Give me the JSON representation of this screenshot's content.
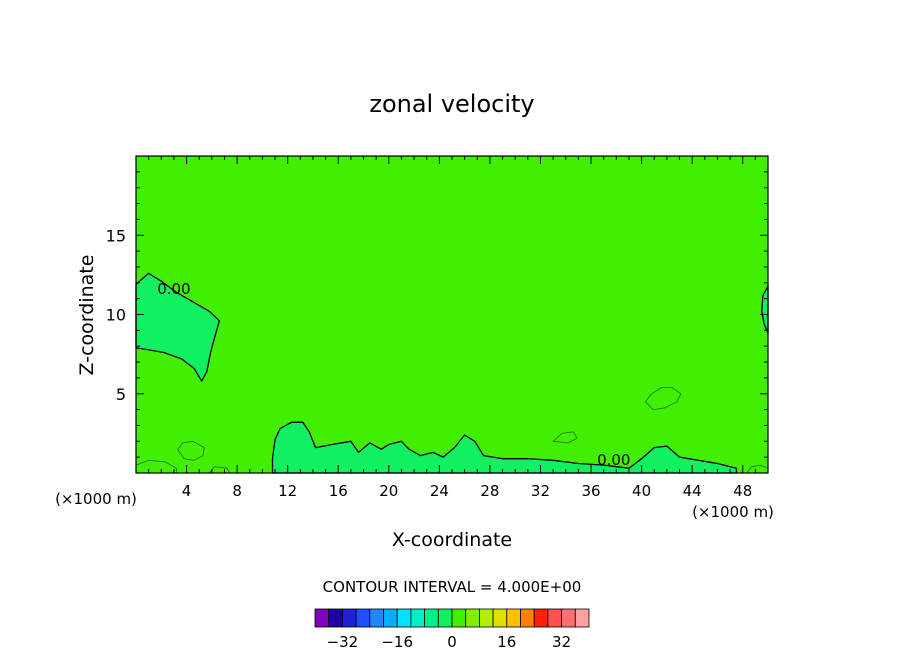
{
  "chart_data": {
    "type": "heatmap",
    "title": "zonal velocity",
    "xlabel": "X-coordinate",
    "ylabel": "Z-coordinate",
    "x_unit_left": "(×1000 m)",
    "x_unit_right": "(×1000 m)",
    "xlim": [
      0,
      50
    ],
    "ylim": [
      0,
      20
    ],
    "x_ticks": [
      4,
      8,
      12,
      16,
      20,
      24,
      28,
      32,
      36,
      40,
      44,
      48
    ],
    "y_ticks": [
      5,
      10,
      15
    ],
    "background_band_value": 2,
    "contour_label": "0.00",
    "contour_interval_text": "CONTOUR INTERVAL = 4.000E+00",
    "colorbar": {
      "levels": [
        -36,
        -32,
        -28,
        -24,
        -20,
        -16,
        -12,
        -8,
        -4,
        0,
        4,
        8,
        12,
        16,
        20,
        24,
        28,
        32,
        36
      ],
      "colors": [
        "#7f00bf",
        "#1f00a8",
        "#2020d8",
        "#1f4fff",
        "#1f88ff",
        "#00b0ff",
        "#00e0ff",
        "#00f0c8",
        "#00f08a",
        "#10f060",
        "#40f000",
        "#7ff000",
        "#b0f000",
        "#e0e000",
        "#ffc000",
        "#ff8000",
        "#ff2000",
        "#ff5050",
        "#ff7070",
        "#ffa0a0"
      ],
      "tick_labels": [
        "-32",
        "-16",
        "0",
        "16",
        "32"
      ],
      "tick_values": [
        -32,
        -16,
        0,
        16,
        32
      ]
    },
    "regions": [
      {
        "value": 0,
        "color": "#10f060",
        "desc": "weak westerly blob near x=3, z=10",
        "zero_contour": true,
        "points": [
          [
            0,
            11.9
          ],
          [
            1,
            12.6
          ],
          [
            2,
            12.1
          ],
          [
            3.2,
            11.4
          ],
          [
            4.5,
            10.8
          ],
          [
            5.8,
            10.2
          ],
          [
            6.6,
            9.6
          ],
          [
            6.2,
            8.5
          ],
          [
            5.9,
            7.6
          ],
          [
            5.6,
            6.4
          ],
          [
            5.2,
            5.8
          ],
          [
            4.6,
            6.6
          ],
          [
            3.6,
            7.2
          ],
          [
            2.2,
            7.6
          ],
          [
            0.8,
            7.8
          ],
          [
            0,
            7.9
          ]
        ]
      },
      {
        "value": 0,
        "color": "#10f060",
        "desc": "blob at right edge near z=10",
        "zero_contour": true,
        "points": [
          [
            50,
            11.8
          ],
          [
            49.6,
            11.2
          ],
          [
            49.5,
            10.2
          ],
          [
            49.7,
            9.4
          ],
          [
            50,
            8.8
          ]
        ]
      },
      {
        "value": 0,
        "color": "#10f060",
        "desc": "low-level near-zero band",
        "zero_contour": true,
        "points": [
          [
            10.8,
            0.9
          ],
          [
            11,
            2.1
          ],
          [
            11.4,
            2.8
          ],
          [
            12.3,
            3.2
          ],
          [
            13.2,
            3.2
          ],
          [
            13.7,
            2.6
          ],
          [
            14.2,
            1.6
          ],
          [
            15.5,
            1.8
          ],
          [
            17,
            2.0
          ],
          [
            17.6,
            1.3
          ],
          [
            18.5,
            1.9
          ],
          [
            19.4,
            1.5
          ],
          [
            20,
            1.8
          ],
          [
            21,
            2.0
          ],
          [
            21.6,
            1.5
          ],
          [
            22.5,
            1.1
          ],
          [
            23.5,
            1.3
          ],
          [
            24.3,
            1.0
          ],
          [
            25.2,
            1.6
          ],
          [
            26,
            2.4
          ],
          [
            26.8,
            2.0
          ],
          [
            27.5,
            1.1
          ],
          [
            29,
            0.9
          ],
          [
            31,
            0.9
          ],
          [
            33,
            0.8
          ],
          [
            35,
            0.6
          ],
          [
            37,
            0.5
          ],
          [
            39,
            0.3
          ],
          [
            40,
            0.9
          ],
          [
            41,
            1.6
          ],
          [
            42,
            1.7
          ],
          [
            43,
            1.0
          ],
          [
            44.5,
            0.8
          ],
          [
            46,
            0.6
          ],
          [
            47.5,
            0.3
          ],
          [
            47.5,
            0
          ],
          [
            10.8,
            0
          ]
        ]
      },
      {
        "value": 4,
        "color": "#40f000",
        "desc": "weak easterly blob near x=42, z=4.5",
        "zero_contour": false,
        "points": [
          [
            40.3,
            4.5
          ],
          [
            40.8,
            5.0
          ],
          [
            41.6,
            5.4
          ],
          [
            42.4,
            5.4
          ],
          [
            43.1,
            5.0
          ],
          [
            42.8,
            4.5
          ],
          [
            41.8,
            4.1
          ],
          [
            40.9,
            4.0
          ]
        ]
      },
      {
        "value": 4,
        "color": "#40f000",
        "desc": "small blob near x=4, z=1.5",
        "zero_contour": false,
        "points": [
          [
            3.3,
            1.5
          ],
          [
            3.7,
            1.9
          ],
          [
            4.5,
            2.0
          ],
          [
            5.4,
            1.6
          ],
          [
            5.3,
            1.1
          ],
          [
            4.6,
            0.8
          ],
          [
            3.8,
            0.9
          ]
        ]
      },
      {
        "value": 4,
        "color": "#40f000",
        "desc": "blob near x=34, z=2.2",
        "zero_contour": false,
        "points": [
          [
            33,
            2.0
          ],
          [
            33.7,
            2.5
          ],
          [
            34.6,
            2.6
          ],
          [
            34.9,
            2.2
          ],
          [
            34.2,
            1.9
          ]
        ]
      },
      {
        "value": 4,
        "color": "#40f000",
        "desc": "surface blob near x=2",
        "zero_contour": false,
        "points": [
          [
            0,
            0
          ],
          [
            0,
            0.5
          ],
          [
            1,
            0.8
          ],
          [
            2.3,
            0.7
          ],
          [
            3.2,
            0.3
          ],
          [
            3.2,
            0
          ]
        ]
      },
      {
        "value": 4,
        "color": "#40f000",
        "desc": "surface blob near x=6.5",
        "zero_contour": false,
        "points": [
          [
            5.8,
            0
          ],
          [
            6.2,
            0.4
          ],
          [
            7.2,
            0.3
          ],
          [
            7.4,
            0
          ]
        ]
      },
      {
        "value": 4,
        "color": "#40f000",
        "desc": "surface blob near x=49",
        "zero_contour": false,
        "points": [
          [
            48.3,
            0
          ],
          [
            48.7,
            0.4
          ],
          [
            49.4,
            0.5
          ],
          [
            50,
            0.3
          ],
          [
            50,
            0
          ]
        ]
      }
    ]
  }
}
